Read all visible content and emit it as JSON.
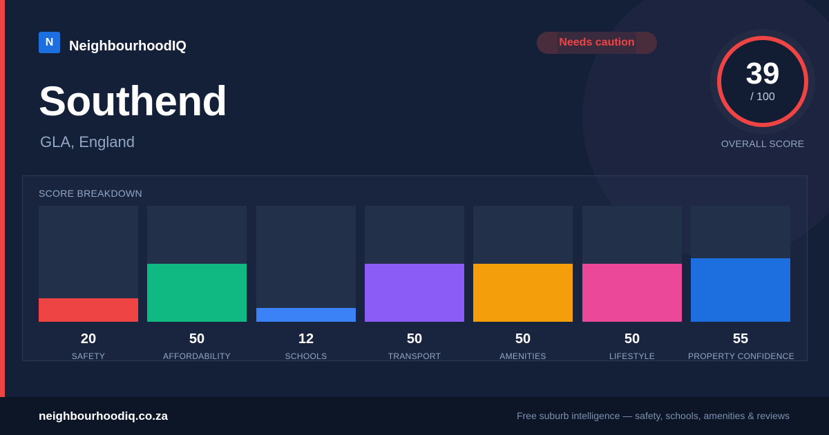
{
  "brand": {
    "logo_letter": "N",
    "name": "NeighbourhoodIQ",
    "accent_color": "#1d6fe0"
  },
  "suburb": {
    "name": "Southend",
    "region": "GLA, England"
  },
  "status": {
    "label": "Needs caution",
    "color": "#ef4444"
  },
  "score": {
    "value": "39",
    "max": "/ 100",
    "caption": "OVERALL SCORE"
  },
  "breakdown": {
    "title": "SCORE BREAKDOWN",
    "items": [
      {
        "label": "SAFETY",
        "value": 20,
        "value_text": "20",
        "color": "#ef4444"
      },
      {
        "label": "AFFORDABILITY",
        "value": 50,
        "value_text": "50",
        "color": "#10b981"
      },
      {
        "label": "SCHOOLS",
        "value": 12,
        "value_text": "12",
        "color": "#3b82f6"
      },
      {
        "label": "TRANSPORT",
        "value": 50,
        "value_text": "50",
        "color": "#8b5cf6"
      },
      {
        "label": "AMENITIES",
        "value": 50,
        "value_text": "50",
        "color": "#f59e0b"
      },
      {
        "label": "LIFESTYLE",
        "value": 50,
        "value_text": "50",
        "color": "#ec4899"
      },
      {
        "label": "PROPERTY CONFIDENCE",
        "value": 55,
        "value_text": "55",
        "color": "#1d6fe0"
      }
    ]
  },
  "footer": {
    "domain": "neighbourhoodiq.co.za",
    "tagline": "Free suburb intelligence — safety, schools, amenities & reviews"
  }
}
